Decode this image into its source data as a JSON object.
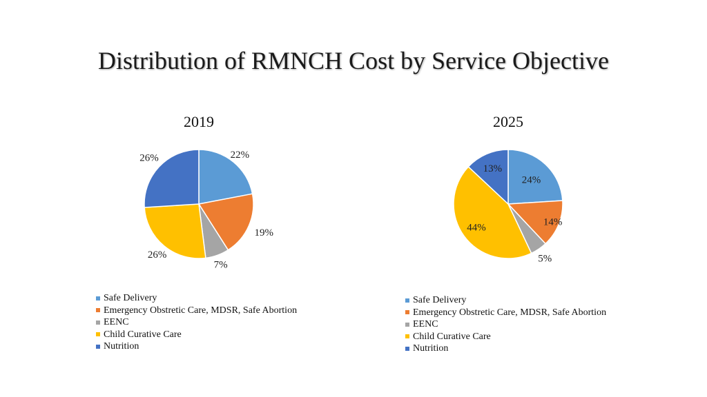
{
  "slide_title": "Distribution of RMNCH Cost by Service Objective",
  "chart_data": [
    {
      "type": "pie",
      "title": "2019",
      "categories": [
        "Safe Delivery",
        "Emergency Obstretic Care, MDSR, Safe Abortion",
        "EENC",
        "Child Curative Care",
        "Nutrition"
      ],
      "values": [
        22,
        19,
        7,
        26,
        26
      ],
      "labels": [
        "22%",
        "19%",
        "7%",
        "26%",
        "26%"
      ],
      "colors": [
        "#5B9BD5",
        "#ED7D31",
        "#A5A5A5",
        "#FFC000",
        "#4472C4"
      ],
      "legend_position": "bottom-left"
    },
    {
      "type": "pie",
      "title": "2025",
      "categories": [
        "Safe Delivery",
        "Emergency Obstretic Care, MDSR, Safe Abortion",
        "EENC",
        "Child Curative Care",
        "Nutrition"
      ],
      "values": [
        24,
        14,
        5,
        44,
        13
      ],
      "labels": [
        "24%",
        "14%",
        "5%",
        "44%",
        "13%"
      ],
      "colors": [
        "#5B9BD5",
        "#ED7D31",
        "#A5A5A5",
        "#FFC000",
        "#4472C4"
      ],
      "legend_position": "bottom-left"
    }
  ]
}
